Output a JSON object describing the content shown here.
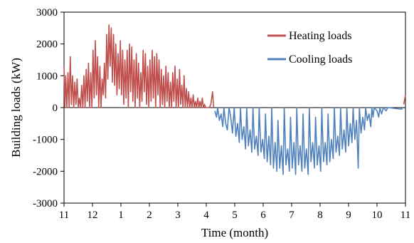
{
  "chart_data": {
    "type": "line",
    "xlabel": "Time (month)",
    "ylabel": "Building loads (kW)",
    "ylim": [
      -3000,
      3000
    ],
    "yticks": [
      3000,
      2000,
      1000,
      0,
      -1000,
      -2000,
      -3000
    ],
    "ytick_labels": [
      "3000",
      "2000",
      "1000",
      "0",
      "-1000",
      "-2000",
      "-3000"
    ],
    "xlim": [
      0,
      12
    ],
    "xticks": [
      0,
      1,
      2,
      3,
      4,
      5,
      6,
      7,
      8,
      9,
      10,
      11,
      12
    ],
    "xtick_labels": [
      "11",
      "12",
      "1",
      "2",
      "3",
      "4",
      "5",
      "6",
      "7",
      "8",
      "9",
      "10",
      "11"
    ],
    "grid": false,
    "legend_position": "top-right",
    "series": [
      {
        "name": "Heating loads",
        "color": "#c0504d",
        "points": [
          [
            0.0,
            1300
          ],
          [
            0.03,
            0
          ],
          [
            0.06,
            1000
          ],
          [
            0.1,
            0
          ],
          [
            0.14,
            1100
          ],
          [
            0.18,
            0
          ],
          [
            0.22,
            1600
          ],
          [
            0.26,
            100
          ],
          [
            0.3,
            1000
          ],
          [
            0.34,
            0
          ],
          [
            0.38,
            800
          ],
          [
            0.42,
            100
          ],
          [
            0.46,
            900
          ],
          [
            0.5,
            0
          ],
          [
            0.54,
            300
          ],
          [
            0.58,
            0
          ],
          [
            0.62,
            700
          ],
          [
            0.66,
            0
          ],
          [
            0.7,
            1000
          ],
          [
            0.74,
            0
          ],
          [
            0.78,
            1200
          ],
          [
            0.82,
            200
          ],
          [
            0.86,
            1400
          ],
          [
            0.9,
            0
          ],
          [
            0.94,
            1100
          ],
          [
            0.98,
            0
          ],
          [
            1.02,
            1800
          ],
          [
            1.06,
            300
          ],
          [
            1.1,
            2100
          ],
          [
            1.14,
            400
          ],
          [
            1.18,
            1600
          ],
          [
            1.22,
            0
          ],
          [
            1.26,
            1300
          ],
          [
            1.3,
            0
          ],
          [
            1.34,
            900
          ],
          [
            1.38,
            400
          ],
          [
            1.42,
            1400
          ],
          [
            1.46,
            300
          ],
          [
            1.5,
            2300
          ],
          [
            1.54,
            900
          ],
          [
            1.58,
            2600
          ],
          [
            1.62,
            1300
          ],
          [
            1.66,
            2500
          ],
          [
            1.7,
            800
          ],
          [
            1.74,
            2300
          ],
          [
            1.78,
            700
          ],
          [
            1.82,
            2000
          ],
          [
            1.86,
            400
          ],
          [
            1.9,
            1700
          ],
          [
            1.94,
            600
          ],
          [
            1.98,
            2100
          ],
          [
            2.02,
            400
          ],
          [
            2.06,
            1800
          ],
          [
            2.1,
            100
          ],
          [
            2.14,
            1500
          ],
          [
            2.18,
            300
          ],
          [
            2.22,
            1800
          ],
          [
            2.26,
            0
          ],
          [
            2.3,
            2000
          ],
          [
            2.34,
            500
          ],
          [
            2.38,
            1900
          ],
          [
            2.42,
            200
          ],
          [
            2.46,
            1500
          ],
          [
            2.5,
            0
          ],
          [
            2.54,
            1700
          ],
          [
            2.58,
            300
          ],
          [
            2.62,
            1400
          ],
          [
            2.66,
            0
          ],
          [
            2.7,
            1100
          ],
          [
            2.74,
            200
          ],
          [
            2.78,
            1800
          ],
          [
            2.82,
            500
          ],
          [
            2.86,
            1700
          ],
          [
            2.9,
            100
          ],
          [
            2.94,
            1300
          ],
          [
            2.98,
            0
          ],
          [
            3.02,
            1500
          ],
          [
            3.06,
            200
          ],
          [
            3.1,
            1800
          ],
          [
            3.14,
            300
          ],
          [
            3.18,
            1600
          ],
          [
            3.22,
            0
          ],
          [
            3.26,
            1700
          ],
          [
            3.3,
            400
          ],
          [
            3.34,
            1500
          ],
          [
            3.38,
            0
          ],
          [
            3.42,
            1200
          ],
          [
            3.46,
            100
          ],
          [
            3.5,
            1000
          ],
          [
            3.54,
            0
          ],
          [
            3.58,
            1300
          ],
          [
            3.62,
            200
          ],
          [
            3.66,
            1100
          ],
          [
            3.7,
            0
          ],
          [
            3.74,
            800
          ],
          [
            3.78,
            0
          ],
          [
            3.82,
            1100
          ],
          [
            3.86,
            200
          ],
          [
            3.9,
            1300
          ],
          [
            3.94,
            0
          ],
          [
            3.98,
            900
          ],
          [
            4.02,
            0
          ],
          [
            4.06,
            1200
          ],
          [
            4.1,
            100
          ],
          [
            4.14,
            700
          ],
          [
            4.18,
            0
          ],
          [
            4.22,
            1000
          ],
          [
            4.26,
            0
          ],
          [
            4.3,
            600
          ],
          [
            4.34,
            0
          ],
          [
            4.38,
            500
          ],
          [
            4.42,
            0
          ],
          [
            4.46,
            300
          ],
          [
            4.5,
            0
          ],
          [
            4.54,
            400
          ],
          [
            4.58,
            0
          ],
          [
            4.62,
            200
          ],
          [
            4.66,
            0
          ],
          [
            4.7,
            300
          ],
          [
            4.74,
            0
          ],
          [
            4.78,
            200
          ],
          [
            4.82,
            0
          ],
          [
            4.86,
            300
          ],
          [
            4.9,
            0
          ],
          [
            4.94,
            100
          ],
          [
            4.98,
            0
          ],
          [
            5.02,
            0
          ],
          [
            5.06,
            0
          ],
          [
            5.1,
            0
          ],
          [
            5.16,
            100
          ],
          [
            5.22,
            500
          ],
          [
            5.26,
            0
          ],
          [
            11.94,
            100
          ],
          [
            12.0,
            400
          ]
        ]
      },
      {
        "name": "Cooling loads",
        "color": "#4f81bd",
        "points": [
          [
            5.3,
            -100
          ],
          [
            5.36,
            -300
          ],
          [
            5.4,
            0
          ],
          [
            5.46,
            -400
          ],
          [
            5.52,
            -200
          ],
          [
            5.58,
            -600
          ],
          [
            5.62,
            0
          ],
          [
            5.68,
            -500
          ],
          [
            5.74,
            -700
          ],
          [
            5.8,
            0
          ],
          [
            5.86,
            -300
          ],
          [
            5.92,
            -800
          ],
          [
            5.98,
            0
          ],
          [
            6.04,
            -900
          ],
          [
            6.1,
            -500
          ],
          [
            6.16,
            -1100
          ],
          [
            6.2,
            0
          ],
          [
            6.26,
            -1000
          ],
          [
            6.32,
            -600
          ],
          [
            6.38,
            -1300
          ],
          [
            6.42,
            0
          ],
          [
            6.48,
            -1200
          ],
          [
            6.54,
            -700
          ],
          [
            6.6,
            -1400
          ],
          [
            6.64,
            0
          ],
          [
            6.7,
            -1300
          ],
          [
            6.76,
            -900
          ],
          [
            6.82,
            -1500
          ],
          [
            6.86,
            0
          ],
          [
            6.92,
            -1400
          ],
          [
            6.98,
            -1000
          ],
          [
            7.04,
            -1600
          ],
          [
            7.08,
            -200
          ],
          [
            7.14,
            -1700
          ],
          [
            7.2,
            -900
          ],
          [
            7.26,
            -1800
          ],
          [
            7.3,
            0
          ],
          [
            7.36,
            -1900
          ],
          [
            7.42,
            -1100
          ],
          [
            7.48,
            -2000
          ],
          [
            7.52,
            -400
          ],
          [
            7.58,
            -1900
          ],
          [
            7.64,
            -1200
          ],
          [
            7.7,
            -2100
          ],
          [
            7.74,
            0
          ],
          [
            7.8,
            -1800
          ],
          [
            7.86,
            -1300
          ],
          [
            7.92,
            -2000
          ],
          [
            7.96,
            -300
          ],
          [
            8.02,
            -1900
          ],
          [
            8.08,
            -1100
          ],
          [
            8.14,
            -2100
          ],
          [
            8.18,
            0
          ],
          [
            8.24,
            -1800
          ],
          [
            8.3,
            -1200
          ],
          [
            8.36,
            -2000
          ],
          [
            8.4,
            -200
          ],
          [
            8.46,
            -1900
          ],
          [
            8.52,
            -1300
          ],
          [
            8.58,
            -2100
          ],
          [
            8.62,
            0
          ],
          [
            8.68,
            -1700
          ],
          [
            8.74,
            -1100
          ],
          [
            8.8,
            -1900
          ],
          [
            8.84,
            -300
          ],
          [
            8.9,
            -1800
          ],
          [
            8.96,
            -1200
          ],
          [
            9.02,
            -2000
          ],
          [
            9.06,
            0
          ],
          [
            9.12,
            -1700
          ],
          [
            9.18,
            -1100
          ],
          [
            9.24,
            -1800
          ],
          [
            9.28,
            -200
          ],
          [
            9.34,
            -1700
          ],
          [
            9.4,
            -1000
          ],
          [
            9.46,
            -1600
          ],
          [
            9.5,
            0
          ],
          [
            9.56,
            -1400
          ],
          [
            9.62,
            -900
          ],
          [
            9.68,
            -1500
          ],
          [
            9.72,
            0
          ],
          [
            9.78,
            -1300
          ],
          [
            9.84,
            -700
          ],
          [
            9.9,
            -1400
          ],
          [
            9.94,
            0
          ],
          [
            10.0,
            -1200
          ],
          [
            10.06,
            -500
          ],
          [
            10.12,
            -1100
          ],
          [
            10.16,
            0
          ],
          [
            10.22,
            -1000
          ],
          [
            10.28,
            -400
          ],
          [
            10.34,
            -1900
          ],
          [
            10.38,
            0
          ],
          [
            10.44,
            -800
          ],
          [
            10.5,
            -300
          ],
          [
            10.56,
            -700
          ],
          [
            10.6,
            0
          ],
          [
            10.66,
            -400
          ],
          [
            10.72,
            -200
          ],
          [
            10.78,
            -600
          ],
          [
            10.82,
            0
          ],
          [
            10.86,
            -300
          ],
          [
            10.9,
            0
          ],
          [
            11.0,
            -100
          ],
          [
            11.06,
            -300
          ],
          [
            11.1,
            0
          ],
          [
            11.16,
            -200
          ],
          [
            11.22,
            0
          ],
          [
            11.32,
            -100
          ],
          [
            11.38,
            0
          ],
          [
            11.86,
            -50
          ],
          [
            11.9,
            0
          ]
        ]
      }
    ]
  }
}
